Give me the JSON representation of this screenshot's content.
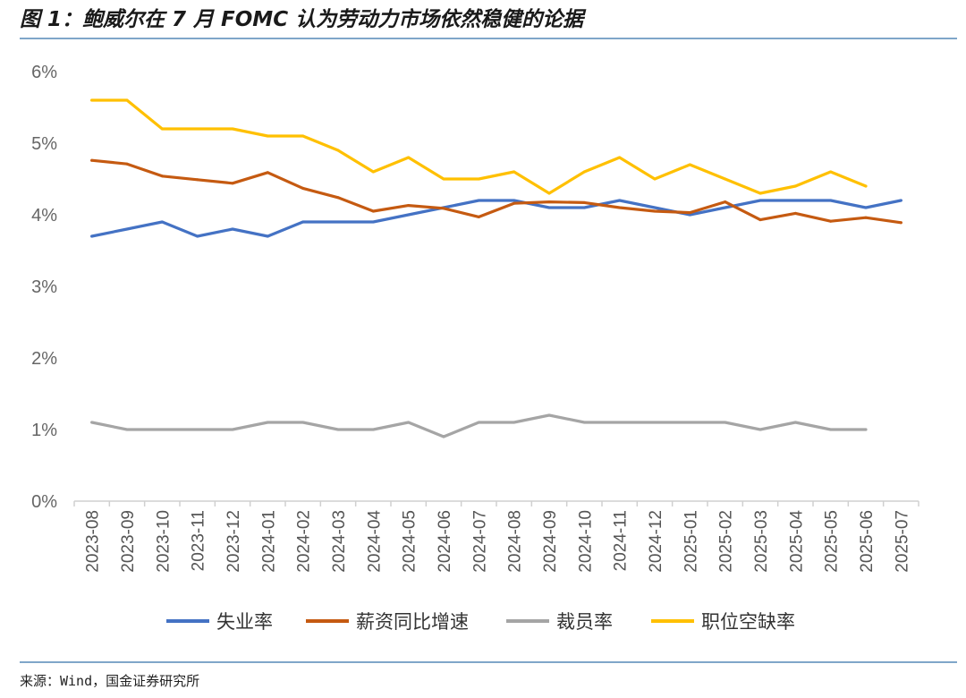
{
  "header": {
    "title": "图 1：鲍威尔在 7 月 FOMC 认为劳动力市场依然稳健的论据"
  },
  "footer": {
    "source": "来源：Wind，国金证券研究所"
  },
  "chart_data": {
    "type": "line",
    "title": "",
    "xlabel": "",
    "ylabel": "",
    "ylim": [
      0,
      6
    ],
    "yticks": [
      "0%",
      "1%",
      "2%",
      "3%",
      "4%",
      "5%",
      "6%"
    ],
    "grid": false,
    "legend_position": "bottom",
    "categories": [
      "2023-08",
      "2023-09",
      "2023-10",
      "2023-11",
      "2023-12",
      "2024-01",
      "2024-02",
      "2024-03",
      "2024-04",
      "2024-05",
      "2024-06",
      "2024-07",
      "2024-08",
      "2024-09",
      "2024-10",
      "2024-11",
      "2024-12",
      "2025-01",
      "2025-02",
      "2025-03",
      "2025-04",
      "2025-05",
      "2025-06",
      "2025-07"
    ],
    "series": [
      {
        "name": "失业率",
        "color": "#4472c4",
        "values": [
          3.7,
          3.8,
          3.9,
          3.7,
          3.8,
          3.7,
          3.9,
          3.9,
          3.9,
          4.0,
          4.1,
          4.2,
          4.2,
          4.1,
          4.1,
          4.2,
          4.1,
          4.0,
          4.1,
          4.2,
          4.2,
          4.2,
          4.1,
          4.2
        ]
      },
      {
        "name": "薪资同比增速",
        "color": "#c55a11",
        "values": [
          4.76,
          4.71,
          4.54,
          4.49,
          4.44,
          4.59,
          4.37,
          4.24,
          4.05,
          4.13,
          4.09,
          3.97,
          4.16,
          4.18,
          4.17,
          4.1,
          4.05,
          4.03,
          4.18,
          3.93,
          4.02,
          3.91,
          3.96,
          3.89
        ]
      },
      {
        "name": "裁员率",
        "color": "#a5a5a5",
        "values": [
          1.1,
          1.0,
          1.0,
          1.0,
          1.0,
          1.1,
          1.1,
          1.0,
          1.0,
          1.1,
          0.9,
          1.1,
          1.1,
          1.2,
          1.1,
          1.1,
          1.1,
          1.1,
          1.1,
          1.0,
          1.1,
          1.0,
          1.0,
          null
        ]
      },
      {
        "name": "职位空缺率",
        "color": "#ffc000",
        "values": [
          5.6,
          5.6,
          5.2,
          5.2,
          5.2,
          5.1,
          5.1,
          4.9,
          4.6,
          4.8,
          4.5,
          4.5,
          4.6,
          4.3,
          4.6,
          4.8,
          4.5,
          4.7,
          4.5,
          4.3,
          4.4,
          4.6,
          4.4,
          null
        ]
      }
    ]
  }
}
